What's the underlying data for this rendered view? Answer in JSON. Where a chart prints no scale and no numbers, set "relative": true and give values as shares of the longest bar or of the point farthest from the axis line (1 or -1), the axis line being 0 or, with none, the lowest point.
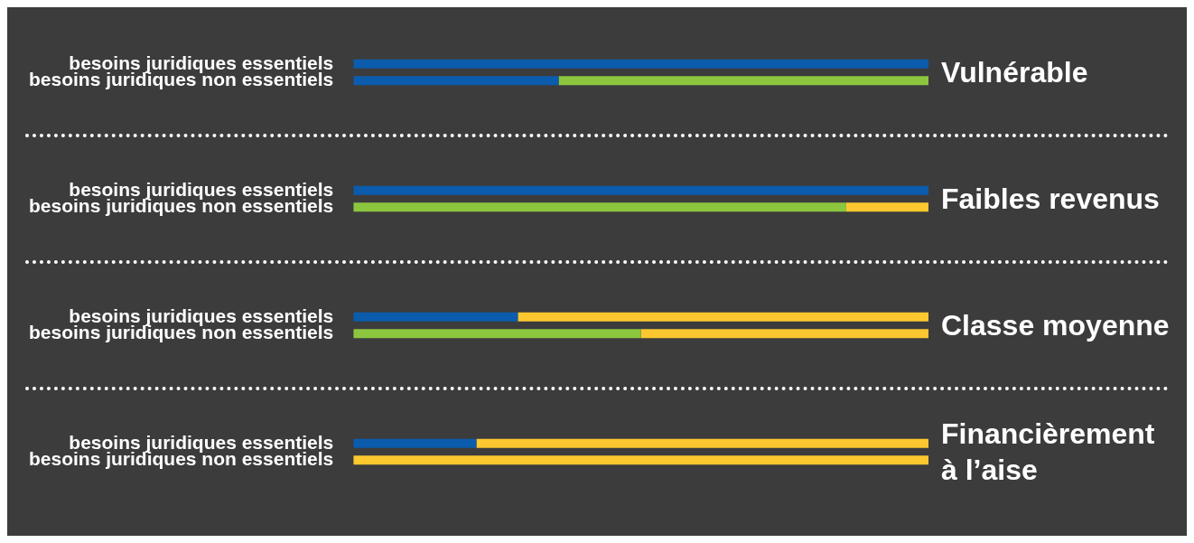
{
  "chart_data": [
    {
      "type": "bar",
      "orientation": "horizontal",
      "stacked": true,
      "relative": true,
      "title": "Vulnérable",
      "categories": [
        "besoins juridiques essentiels",
        "besoins juridiques non essentiels"
      ],
      "series": [
        {
          "color": "#0b5cad",
          "values": [
            1,
            0.357
          ]
        },
        {
          "color": "#8cc63f",
          "values": [
            0,
            0.643
          ]
        },
        {
          "color": "#fdc82f",
          "values": [
            0,
            0
          ]
        }
      ]
    },
    {
      "type": "bar",
      "orientation": "horizontal",
      "stacked": true,
      "relative": true,
      "title": "Faibles revenus",
      "categories": [
        "besoins juridiques essentiels",
        "besoins juridiques non essentiels"
      ],
      "series": [
        {
          "color": "#0b5cad",
          "values": [
            1,
            0
          ]
        },
        {
          "color": "#8cc63f",
          "values": [
            0,
            0.857
          ]
        },
        {
          "color": "#fdc82f",
          "values": [
            0,
            0.143
          ]
        }
      ]
    },
    {
      "type": "bar",
      "orientation": "horizontal",
      "stacked": true,
      "relative": true,
      "title": "Classe moyenne",
      "categories": [
        "besoins juridiques essentiels",
        "besoins juridiques non essentiels"
      ],
      "series": [
        {
          "color": "#0b5cad",
          "values": [
            0.286,
            0
          ]
        },
        {
          "color": "#8cc63f",
          "values": [
            0,
            0.5
          ]
        },
        {
          "color": "#fdc82f",
          "values": [
            0.714,
            0.5
          ]
        }
      ]
    },
    {
      "type": "bar",
      "orientation": "horizontal",
      "stacked": true,
      "relative": true,
      "title": "Financièrement à l’aise",
      "categories": [
        "besoins juridiques essentiels",
        "besoins juridiques non essentiels"
      ],
      "series": [
        {
          "color": "#0b5cad",
          "values": [
            0.214,
            0
          ]
        },
        {
          "color": "#8cc63f",
          "values": [
            0,
            0
          ]
        },
        {
          "color": "#fdc82f",
          "values": [
            0.786,
            1
          ]
        }
      ]
    }
  ]
}
